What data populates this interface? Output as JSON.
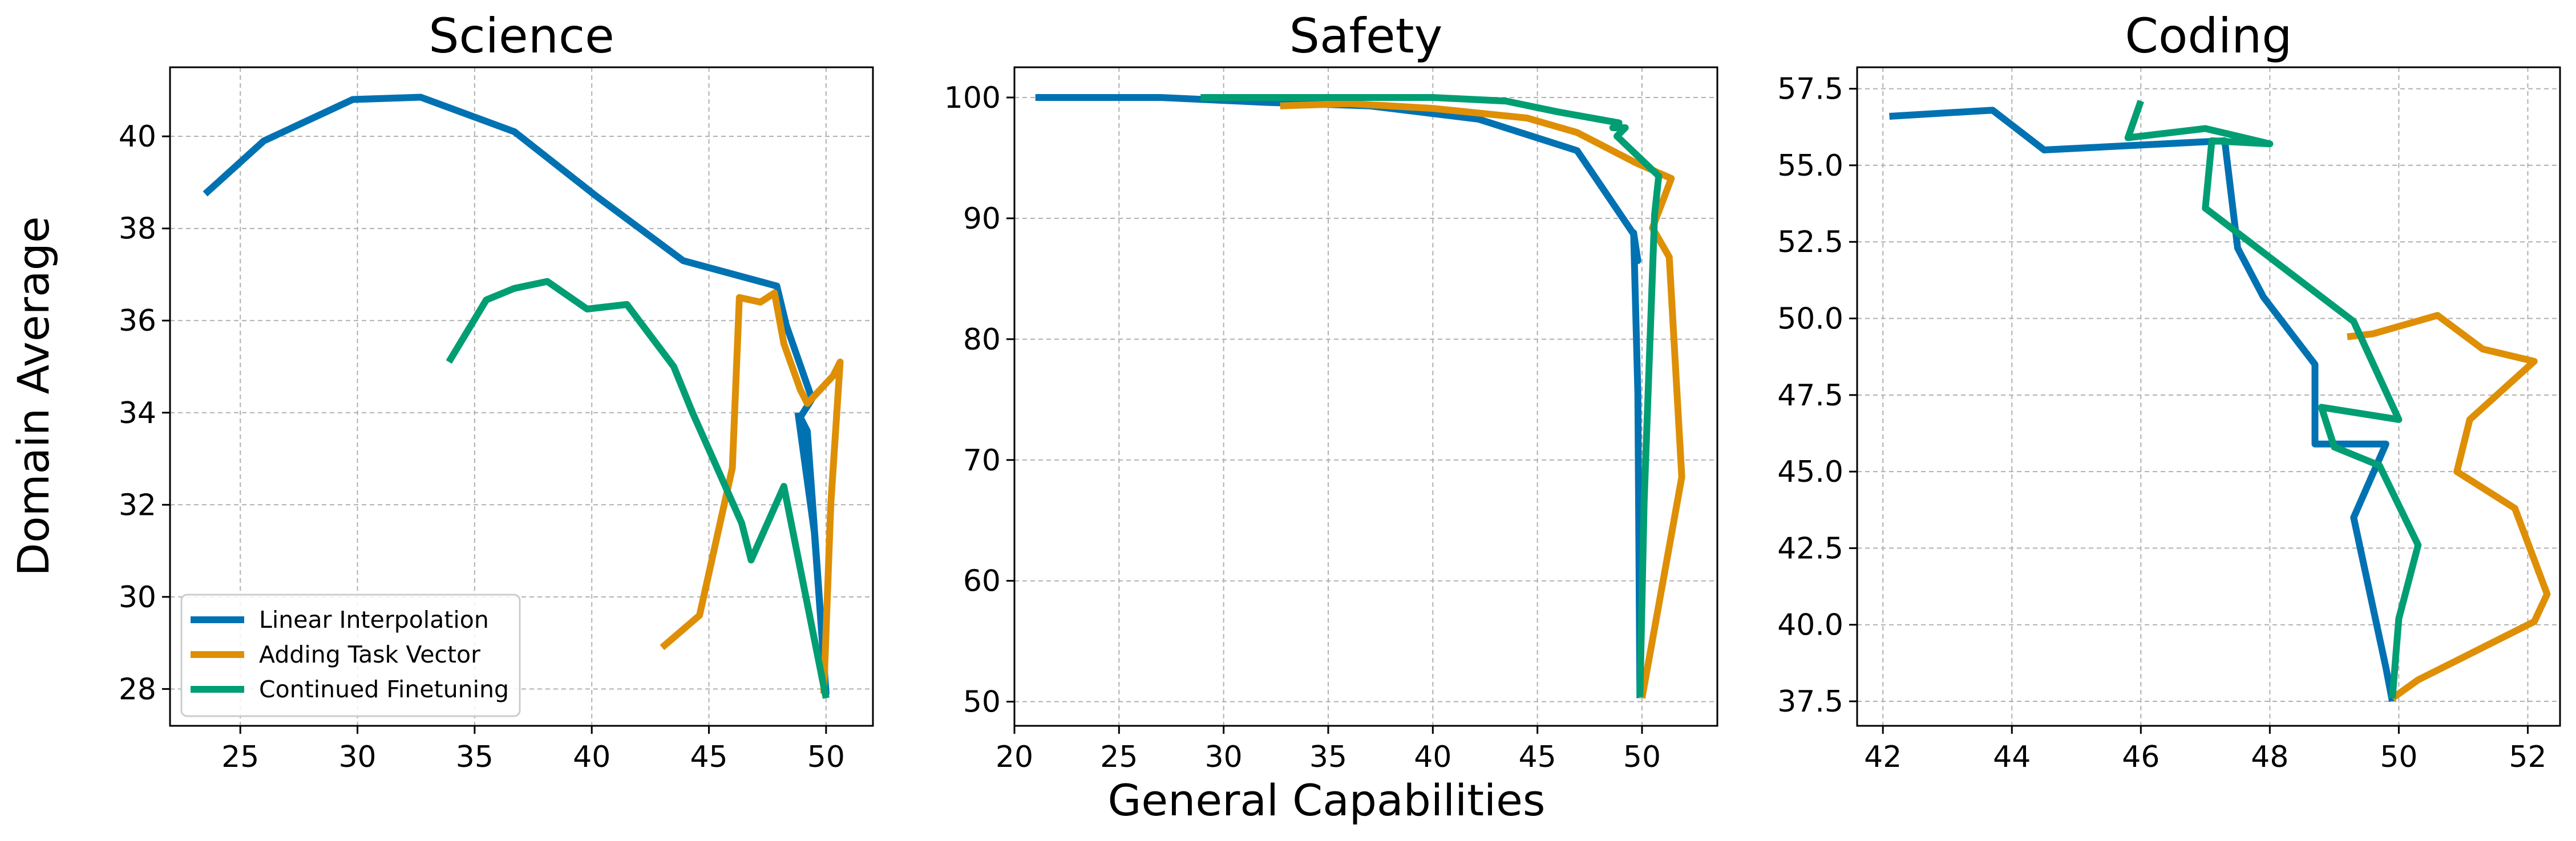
{
  "figure": {
    "xlabel": "General Capabilities",
    "ylabel": "Domain Average"
  },
  "legend": {
    "placement": "lower-left of first panel",
    "entries": [
      {
        "name": "Linear Interpolation",
        "color": "#0072B2"
      },
      {
        "name": "Adding Task Vector",
        "color": "#DE8F05"
      },
      {
        "name": "Continued Finetuning",
        "color": "#029E73"
      }
    ]
  },
  "chart_data": [
    {
      "type": "line",
      "title": "Science",
      "xlim": [
        22,
        52
      ],
      "ylim": [
        27.2,
        41.5
      ],
      "xticks": [
        25,
        30,
        35,
        40,
        45,
        50
      ],
      "yticks": [
        28,
        30,
        32,
        34,
        36,
        38,
        40
      ],
      "grid": true,
      "series": [
        {
          "name": "Linear Interpolation",
          "color": "#0072B2",
          "points": [
            [
              23.5,
              38.75
            ],
            [
              26,
              39.9
            ],
            [
              29.8,
              40.8
            ],
            [
              32.7,
              40.85
            ],
            [
              36.7,
              40.1
            ],
            [
              40.2,
              38.7
            ],
            [
              43.9,
              37.3
            ],
            [
              47.9,
              36.75
            ],
            [
              48.3,
              35.9
            ],
            [
              49.4,
              34.3
            ],
            [
              48.9,
              33.9
            ],
            [
              49.2,
              33.6
            ],
            [
              49.6,
              30.8
            ],
            [
              50.0,
              27.9
            ],
            [
              49.5,
              31.4
            ],
            [
              48.8,
              34.0
            ]
          ]
        },
        {
          "name": "Adding Task Vector",
          "color": "#DE8F05",
          "points": [
            [
              43.0,
              28.9
            ],
            [
              44.6,
              29.6
            ],
            [
              46.0,
              32.8
            ],
            [
              46.3,
              36.5
            ],
            [
              47.2,
              36.4
            ],
            [
              47.8,
              36.6
            ],
            [
              48.2,
              35.5
            ],
            [
              48.9,
              34.5
            ],
            [
              49.2,
              34.2
            ],
            [
              50.3,
              34.8
            ],
            [
              50.6,
              35.1
            ],
            [
              50.2,
              32.0
            ],
            [
              49.9,
              27.9
            ]
          ]
        },
        {
          "name": "Continued Finetuning",
          "color": "#029E73",
          "points": [
            [
              33.9,
              35.1
            ],
            [
              35.5,
              36.45
            ],
            [
              36.7,
              36.7
            ],
            [
              38.1,
              36.85
            ],
            [
              39.8,
              36.25
            ],
            [
              41.5,
              36.35
            ],
            [
              43.5,
              35.0
            ],
            [
              44.3,
              34.0
            ],
            [
              46.4,
              31.6
            ],
            [
              46.8,
              30.8
            ],
            [
              48.2,
              32.4
            ],
            [
              50.0,
              27.8
            ]
          ]
        }
      ]
    },
    {
      "type": "line",
      "title": "Safety",
      "xlim": [
        20,
        53.6
      ],
      "ylim": [
        48,
        102.5
      ],
      "xticks": [
        20,
        25,
        30,
        35,
        40,
        45,
        50
      ],
      "yticks": [
        50,
        60,
        70,
        80,
        90,
        100
      ],
      "grid": true,
      "series": [
        {
          "name": "Linear Interpolation",
          "color": "#0072B2",
          "points": [
            [
              21,
              100
            ],
            [
              27,
              100
            ],
            [
              32,
              99.6
            ],
            [
              37,
              99.3
            ],
            [
              42.2,
              98.2
            ],
            [
              46.9,
              95.6
            ],
            [
              49.6,
              88.7
            ],
            [
              49.8,
              86.5
            ],
            [
              49.6,
              88.8
            ],
            [
              49.8,
              75.5
            ],
            [
              49.9,
              50.3
            ]
          ]
        },
        {
          "name": "Adding Task Vector",
          "color": "#DE8F05",
          "points": [
            [
              32.7,
              99.3
            ],
            [
              36,
              99.5
            ],
            [
              40,
              99.1
            ],
            [
              44.5,
              98.3
            ],
            [
              46.9,
              97.1
            ],
            [
              49.7,
              94.6
            ],
            [
              51.4,
              93.3
            ],
            [
              50.5,
              89.2
            ],
            [
              51.3,
              86.8
            ],
            [
              51.9,
              68.6
            ],
            [
              50,
              50.3
            ]
          ]
        },
        {
          "name": "Continued Finetuning",
          "color": "#029E73",
          "points": [
            [
              28.9,
              100
            ],
            [
              35,
              100
            ],
            [
              40,
              100
            ],
            [
              43.5,
              99.7
            ],
            [
              46,
              98.8
            ],
            [
              48.9,
              97.9
            ],
            [
              48.6,
              97.5
            ],
            [
              49.2,
              97.5
            ],
            [
              48.8,
              96.8
            ],
            [
              50.8,
              93.5
            ],
            [
              50.6,
              90.3
            ],
            [
              50.1,
              66.5
            ],
            [
              49.9,
              50.4
            ]
          ]
        }
      ]
    },
    {
      "type": "line",
      "title": "Coding",
      "xlim": [
        41.6,
        52.5
      ],
      "ylim": [
        36.7,
        58.2
      ],
      "xticks": [
        42,
        44,
        46,
        48,
        50,
        52
      ],
      "yticks": [
        37.5,
        40.0,
        42.5,
        45.0,
        47.5,
        50.0,
        52.5,
        55.0,
        57.5
      ],
      "grid": true,
      "series": [
        {
          "name": "Linear Interpolation",
          "color": "#0072B2",
          "points": [
            [
              42.1,
              56.6
            ],
            [
              43.7,
              56.8
            ],
            [
              44.5,
              55.5
            ],
            [
              47.3,
              55.8
            ],
            [
              47.5,
              52.3
            ],
            [
              47.9,
              50.7
            ],
            [
              48.7,
              48.5
            ],
            [
              48.7,
              45.9
            ],
            [
              49.8,
              45.9
            ],
            [
              49.3,
              43.5
            ],
            [
              49.8,
              38.6
            ],
            [
              49.9,
              37.5
            ]
          ]
        },
        {
          "name": "Adding Task Vector",
          "color": "#DE8F05",
          "points": [
            [
              49.2,
              49.4
            ],
            [
              49.6,
              49.5
            ],
            [
              50.6,
              50.1
            ],
            [
              51.3,
              49.0
            ],
            [
              52.1,
              48.6
            ],
            [
              51.1,
              46.7
            ],
            [
              50.9,
              45.0
            ],
            [
              51.8,
              43.8
            ],
            [
              52.3,
              41.0
            ],
            [
              52.1,
              40.1
            ],
            [
              50.3,
              38.2
            ],
            [
              49.9,
              37.6
            ]
          ]
        },
        {
          "name": "Continued Finetuning",
          "color": "#029E73",
          "points": [
            [
              46.0,
              57.1
            ],
            [
              45.8,
              55.9
            ],
            [
              47.0,
              56.2
            ],
            [
              48.0,
              55.7
            ],
            [
              47.1,
              55.8
            ],
            [
              47.0,
              53.6
            ],
            [
              49.3,
              49.9
            ],
            [
              50.0,
              46.7
            ],
            [
              48.8,
              47.1
            ],
            [
              49.0,
              45.8
            ],
            [
              49.7,
              45.2
            ],
            [
              50.3,
              42.6
            ],
            [
              50.0,
              40.2
            ],
            [
              49.9,
              37.6
            ]
          ]
        }
      ]
    }
  ]
}
